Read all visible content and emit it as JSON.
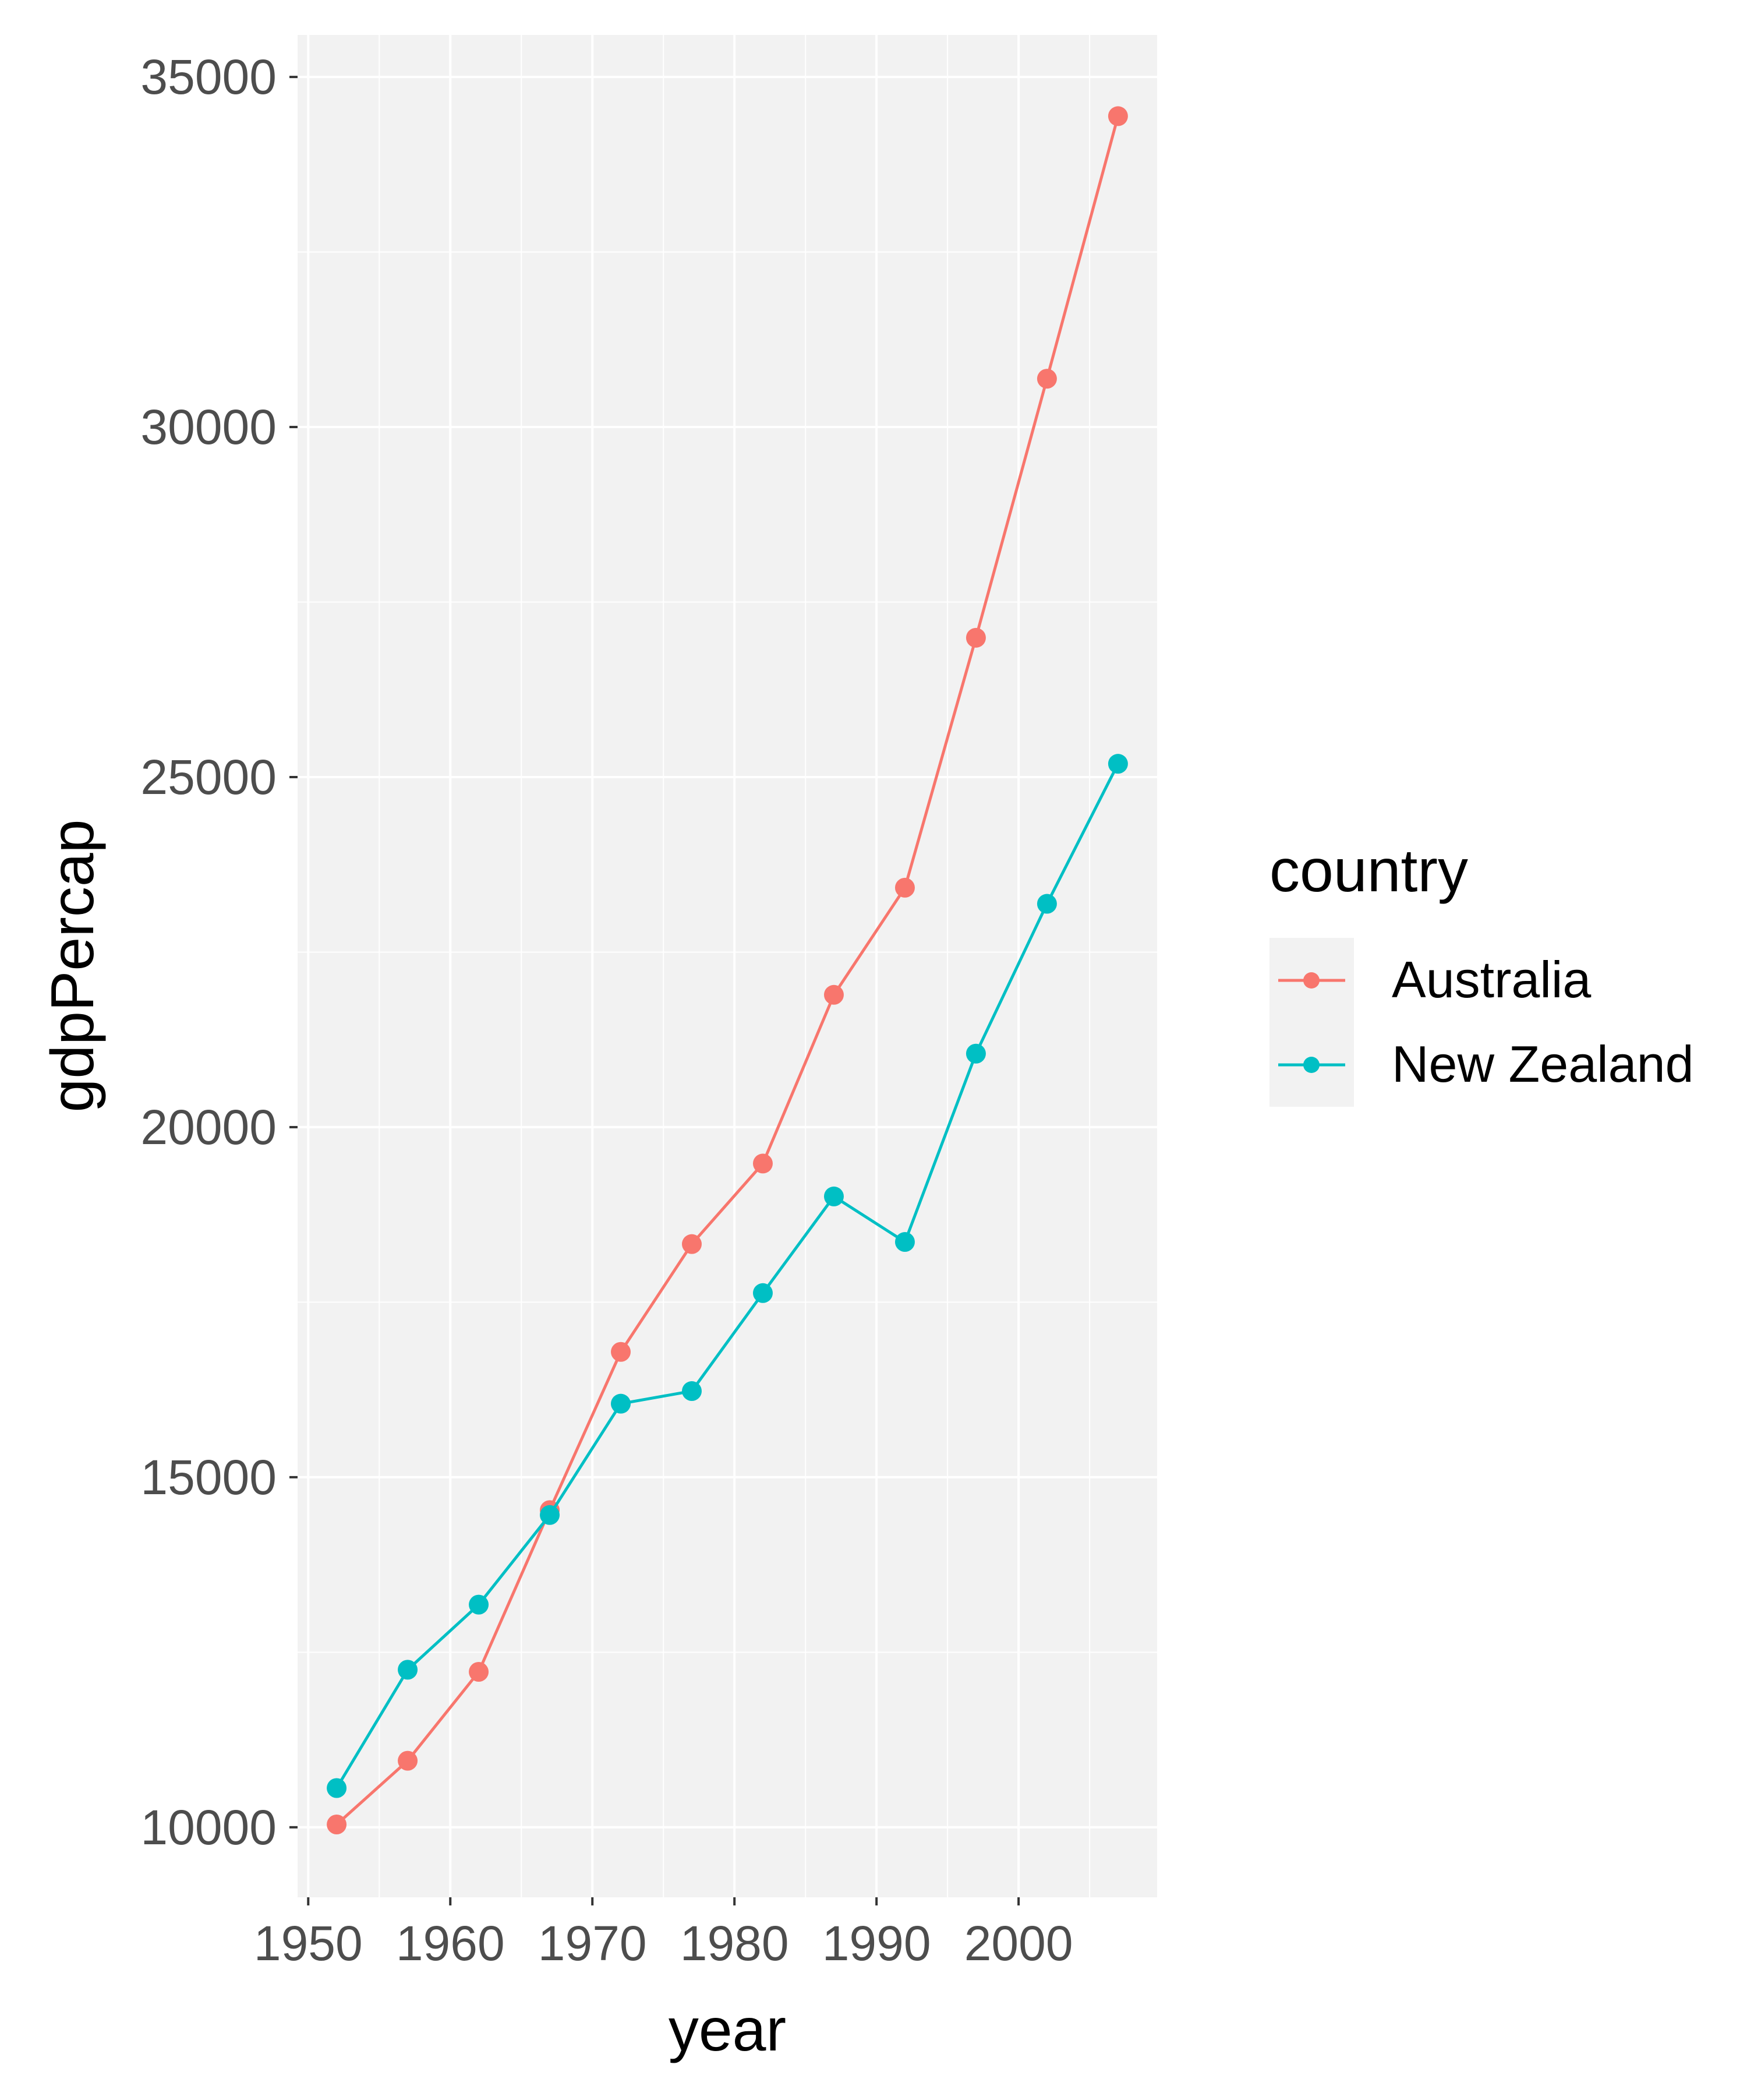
{
  "chart_data": {
    "type": "line",
    "title": "",
    "xlabel": "year",
    "ylabel": "gdpPercap",
    "x": [
      1952,
      1957,
      1962,
      1967,
      1972,
      1977,
      1982,
      1987,
      1992,
      1997,
      2002,
      2007
    ],
    "xlim": [
      1949.25,
      2009.75
    ],
    "ylim": [
      9000,
      35600
    ],
    "xticks": [
      1950,
      1960,
      1970,
      1980,
      1990,
      2000
    ],
    "yticks": [
      10000,
      15000,
      20000,
      25000,
      30000,
      35000
    ],
    "grid": true,
    "legend": {
      "title": "country",
      "position": "right"
    },
    "series": [
      {
        "name": "Australia",
        "color": "#F8766D",
        "values": [
          10040,
          10950,
          12220,
          14530,
          16790,
          18330,
          19480,
          21890,
          23420,
          26990,
          30690,
          34440
        ]
      },
      {
        "name": "New Zealand",
        "color": "#00BFC4",
        "values": [
          10560,
          12250,
          13180,
          14460,
          16050,
          16230,
          17630,
          19010,
          18360,
          21050,
          23190,
          25190
        ]
      }
    ],
    "panel_color": "#F2F2F2",
    "grid_color": "#FFFFFF"
  }
}
